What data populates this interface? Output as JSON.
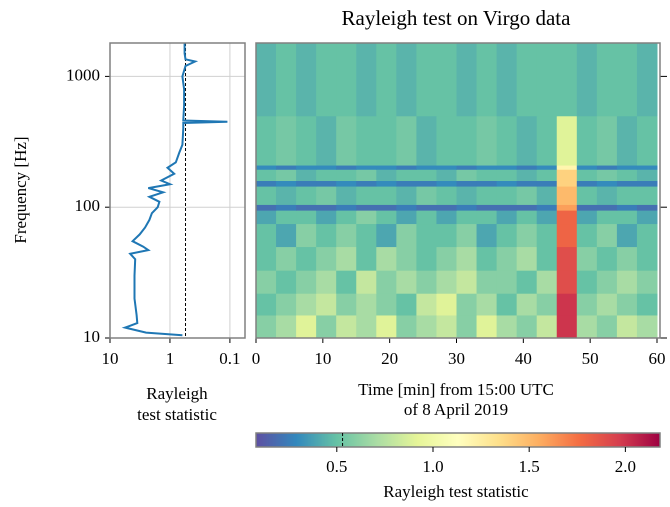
{
  "chart_data": [
    {
      "type": "line",
      "ylabel": "Frequency [Hz]",
      "xlabel": [
        "Rayleigh",
        "test statistic"
      ],
      "xscale": "log",
      "yscale": "log",
      "xlim": [
        10,
        0.056
      ],
      "ylim": [
        10,
        1800
      ],
      "xticks": [
        10,
        1,
        0.1
      ],
      "yticks": [
        10,
        100,
        1000
      ],
      "grid": true,
      "reference_x": 0.55,
      "series": [
        {
          "color": "#1f77b4",
          "x": [
            0.62,
            2.5,
            5.6,
            3.5,
            3.6,
            3.9,
            3.9,
            3.8,
            4.6,
            2.3,
            2.8,
            4.2,
            3.2,
            2.6,
            2.2,
            2.0,
            1.6,
            1.5,
            2.2,
            1.3,
            2.3,
            1.0,
            1.4,
            0.85,
            1.1,
            0.8,
            0.7,
            0.62,
            0.6,
            0.6,
            0.11,
            0.6,
            0.58,
            0.58,
            0.62,
            0.55,
            0.38,
            0.55,
            0.57,
            0.57
          ],
          "y": [
            10.5,
            11,
            12,
            13,
            15,
            20,
            30,
            40,
            44,
            47,
            50,
            55,
            62,
            70,
            80,
            90,
            100,
            110,
            120,
            130,
            140,
            150,
            160,
            180,
            200,
            220,
            260,
            300,
            400,
            440,
            450,
            460,
            600,
            800,
            1000,
            1200,
            1300,
            1350,
            1500,
            1800
          ]
        }
      ]
    },
    {
      "type": "heatmap",
      "title": "Rayleigh test on Virgo data",
      "xlabel": [
        "Time [min] from 15:00 UTC",
        "of 8 April 2019"
      ],
      "yscale": "log",
      "xlim": [
        0,
        60
      ],
      "ylim": [
        10,
        1800
      ],
      "xticks": [
        0,
        10,
        20,
        30,
        40,
        50,
        60
      ],
      "yticks": [
        10,
        100,
        1000
      ],
      "x_edges": [
        0,
        3,
        6,
        9,
        12,
        15,
        18,
        21,
        24,
        27,
        30,
        33,
        36,
        39,
        42,
        45,
        48,
        51,
        54,
        57,
        60
      ],
      "y_edges": [
        10,
        15,
        22,
        33,
        50,
        75,
        95,
        105,
        145,
        160,
        195,
        210,
        500,
        1800
      ],
      "z": [
        [
          0.6,
          0.7,
          0.9,
          0.6,
          0.8,
          0.7,
          0.9,
          0.6,
          0.7,
          0.8,
          0.6,
          0.9,
          0.7,
          0.6,
          0.8,
          2.0,
          0.7,
          0.6,
          0.8,
          0.7
        ],
        [
          0.5,
          0.6,
          0.7,
          0.8,
          0.6,
          0.7,
          0.6,
          0.5,
          0.8,
          0.9,
          0.6,
          0.7,
          0.5,
          0.7,
          0.6,
          2.0,
          0.6,
          0.7,
          0.6,
          0.5
        ],
        [
          0.6,
          0.5,
          0.6,
          0.7,
          0.5,
          0.8,
          0.6,
          0.7,
          0.6,
          0.7,
          0.8,
          0.6,
          0.6,
          0.5,
          0.7,
          1.9,
          0.5,
          0.6,
          0.7,
          0.6
        ],
        [
          0.5,
          0.6,
          0.5,
          0.6,
          0.7,
          0.5,
          0.7,
          0.6,
          0.5,
          0.6,
          0.7,
          0.5,
          0.6,
          0.7,
          0.5,
          1.9,
          0.6,
          0.5,
          0.6,
          0.5
        ],
        [
          0.5,
          0.4,
          0.6,
          0.5,
          0.6,
          0.5,
          0.4,
          0.6,
          0.5,
          0.5,
          0.6,
          0.4,
          0.5,
          0.6,
          0.5,
          1.8,
          0.5,
          0.6,
          0.4,
          0.5
        ],
        [
          0.4,
          0.5,
          0.5,
          0.4,
          0.5,
          0.6,
          0.5,
          0.4,
          0.5,
          0.4,
          0.5,
          0.5,
          0.4,
          0.5,
          0.4,
          1.8,
          0.4,
          0.5,
          0.5,
          0.4
        ],
        [
          0.2,
          0.25,
          0.2,
          0.2,
          0.25,
          0.2,
          0.2,
          0.25,
          0.2,
          0.2,
          0.25,
          0.2,
          0.2,
          0.2,
          0.25,
          1.6,
          0.2,
          0.2,
          0.25,
          0.2
        ],
        [
          0.5,
          0.45,
          0.5,
          0.55,
          0.45,
          0.5,
          0.5,
          0.45,
          0.55,
          0.5,
          0.45,
          0.5,
          0.5,
          0.55,
          0.45,
          1.5,
          0.5,
          0.45,
          0.5,
          0.5
        ],
        [
          0.25,
          0.3,
          0.25,
          0.25,
          0.3,
          0.25,
          0.3,
          0.25,
          0.25,
          0.3,
          0.25,
          0.25,
          0.3,
          0.25,
          0.25,
          1.4,
          0.25,
          0.3,
          0.25,
          0.25
        ],
        [
          0.5,
          0.55,
          0.45,
          0.5,
          0.5,
          0.55,
          0.45,
          0.5,
          0.5,
          0.45,
          0.55,
          0.5,
          0.5,
          0.45,
          0.5,
          1.4,
          0.5,
          0.55,
          0.5,
          0.45
        ],
        [
          0.3,
          0.25,
          0.3,
          0.3,
          0.25,
          0.3,
          0.3,
          0.25,
          0.3,
          0.3,
          0.25,
          0.3,
          0.3,
          0.25,
          0.3,
          1.2,
          0.3,
          0.25,
          0.3,
          0.3
        ],
        [
          0.5,
          0.55,
          0.5,
          0.45,
          0.55,
          0.5,
          0.5,
          0.55,
          0.45,
          0.5,
          0.5,
          0.55,
          0.5,
          0.45,
          0.5,
          0.9,
          0.5,
          0.55,
          0.45,
          0.5
        ],
        [
          0.45,
          0.5,
          0.45,
          0.5,
          0.5,
          0.45,
          0.5,
          0.45,
          0.5,
          0.5,
          0.45,
          0.5,
          0.45,
          0.5,
          0.5,
          0.5,
          0.45,
          0.5,
          0.5,
          0.45
        ]
      ],
      "colormap": [
        "#5e4fa2",
        "#3288bd",
        "#66c2a5",
        "#abdda4",
        "#e6f598",
        "#ffffbf",
        "#fee08b",
        "#fdae61",
        "#f46d43",
        "#d53e4f",
        "#9e0142"
      ],
      "zlim": [
        0.08,
        2.18
      ],
      "zticks": [
        0.5,
        {
          "value": 1.0,
          "label": "1.0"
        },
        1.5,
        {
          "value": 2.0,
          "label": "2.0"
        }
      ],
      "threshold": 0.53,
      "colorbar_label": "Rayleigh test statistic"
    }
  ]
}
